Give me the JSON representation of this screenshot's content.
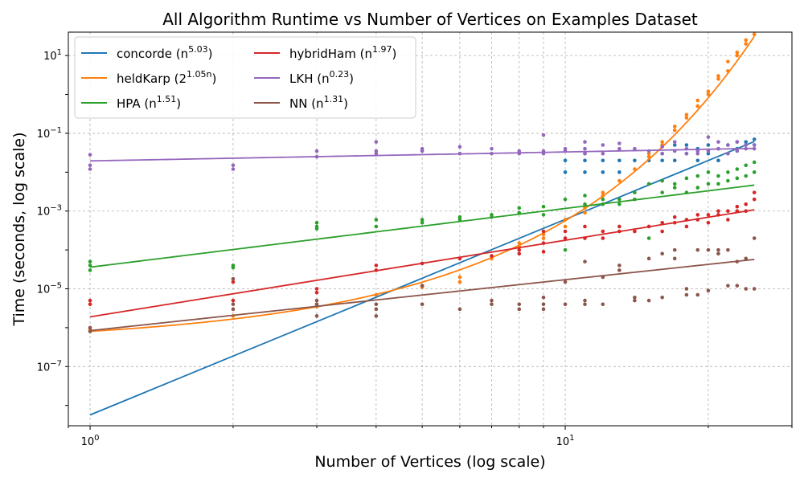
{
  "chart_data": {
    "type": "scatter",
    "title": "All Algorithm Runtime vs Number of Vertices on Examples Dataset",
    "xlabel": "Number of Vertices (log scale)",
    "ylabel": "Time (seconds, log scale)",
    "xscale": "log",
    "yscale": "log",
    "xlim": [
      0.9,
      30
    ],
    "ylim": [
      3e-09,
      40
    ],
    "grid": true,
    "legend_position": "top-left",
    "legend_columns": 2,
    "x_ticks": [
      {
        "value": 1,
        "base": "10",
        "exp": "0"
      },
      {
        "value": 10,
        "base": "10",
        "exp": "1"
      }
    ],
    "y_ticks": [
      {
        "value": 1e-07,
        "base": "10",
        "exp": "−7"
      },
      {
        "value": 1e-05,
        "base": "10",
        "exp": "−5"
      },
      {
        "value": 0.001,
        "base": "10",
        "exp": "−3"
      },
      {
        "value": 0.1,
        "base": "10",
        "exp": "−1"
      },
      {
        "value": 10,
        "base": "10",
        "exp": "1"
      }
    ],
    "series": [
      {
        "name": "concorde",
        "label_base": "n",
        "label_exp": "5.03",
        "color": "#1f77b4",
        "fit": {
          "kind": "power",
          "a": 5.7e-09,
          "b": 5.03
        },
        "points": [
          [
            10,
            0.01
          ],
          [
            10,
            0.02
          ],
          [
            11,
            0.01
          ],
          [
            11,
            0.02
          ],
          [
            11,
            0.03
          ],
          [
            12,
            0.01
          ],
          [
            12,
            0.02
          ],
          [
            13,
            0.01
          ],
          [
            13,
            0.02
          ],
          [
            14,
            0.02
          ],
          [
            15,
            0.02
          ],
          [
            16,
            0.02
          ],
          [
            16,
            0.03
          ],
          [
            17,
            0.02
          ],
          [
            17,
            0.05
          ],
          [
            18,
            0.03
          ],
          [
            18,
            0.05
          ],
          [
            19,
            0.02
          ],
          [
            19,
            0.04
          ],
          [
            20,
            0.03
          ],
          [
            20,
            0.05
          ],
          [
            21,
            0.02
          ],
          [
            21,
            0.04
          ],
          [
            22,
            0.03
          ],
          [
            22,
            0.05
          ],
          [
            23,
            0.04
          ],
          [
            23,
            0.06
          ],
          [
            24,
            0.05
          ],
          [
            24,
            0.06
          ],
          [
            25,
            0.05
          ],
          [
            25,
            0.07
          ]
        ]
      },
      {
        "name": "heldKarp",
        "label_base": "2",
        "label_exp": "1.05n",
        "color": "#ff7f0e",
        "fit": {
          "kind": "exp",
          "a": 3.9e-07,
          "b": 0.7278
        },
        "points": [
          [
            1,
            9e-07
          ],
          [
            2,
            2e-06
          ],
          [
            3,
            3.5e-06
          ],
          [
            4,
            7e-06
          ],
          [
            5,
            1.1e-05
          ],
          [
            6,
            2e-05
          ],
          [
            6,
            1.5e-05
          ],
          [
            7,
            7e-05
          ],
          [
            7,
            6e-05
          ],
          [
            8,
            0.00015
          ],
          [
            8,
            0.00012
          ],
          [
            9,
            0.00025
          ],
          [
            9,
            0.0002
          ],
          [
            10,
            0.0004
          ],
          [
            10,
            0.0006
          ],
          [
            11,
            0.0012
          ],
          [
            11,
            0.0009
          ],
          [
            12,
            0.0025
          ],
          [
            12,
            0.003
          ],
          [
            13,
            0.006
          ],
          [
            14,
            0.012
          ],
          [
            15,
            0.025
          ],
          [
            15,
            0.03
          ],
          [
            16,
            0.06
          ],
          [
            16,
            0.05
          ],
          [
            17,
            0.15
          ],
          [
            17,
            0.12
          ],
          [
            18,
            0.3
          ],
          [
            18,
            0.25
          ],
          [
            19,
            0.5
          ],
          [
            19,
            0.7
          ],
          [
            20,
            1.2
          ],
          [
            20,
            1.0
          ],
          [
            21,
            2.5
          ],
          [
            21,
            3.0
          ],
          [
            22,
            4.0
          ],
          [
            22,
            7.0
          ],
          [
            23,
            10
          ],
          [
            23,
            12
          ],
          [
            24,
            20
          ],
          [
            24,
            25
          ],
          [
            25,
            35
          ],
          [
            25,
            60
          ]
        ]
      },
      {
        "name": "HPA",
        "label_base": "n",
        "label_exp": "1.51",
        "color": "#2ca02c",
        "fit": {
          "kind": "power",
          "a": 3.6e-05,
          "b": 1.51
        },
        "points": [
          [
            1,
            4e-05
          ],
          [
            1,
            3e-05
          ],
          [
            1,
            5e-05
          ],
          [
            2,
            3.5e-05
          ],
          [
            2,
            4e-05
          ],
          [
            3,
            0.0004
          ],
          [
            3,
            0.0005
          ],
          [
            3,
            0.00035
          ],
          [
            4,
            0.0004
          ],
          [
            4,
            0.0006
          ],
          [
            5,
            0.0005
          ],
          [
            5,
            0.0006
          ],
          [
            6,
            0.0006
          ],
          [
            6,
            0.0007
          ],
          [
            7,
            0.0007
          ],
          [
            7,
            0.0008
          ],
          [
            8,
            0.0009
          ],
          [
            8,
            0.0012
          ],
          [
            9,
            0.0008
          ],
          [
            9,
            0.0013
          ],
          [
            10,
            0.0001
          ],
          [
            10,
            0.002
          ],
          [
            11,
            0.0015
          ],
          [
            11,
            0.0025
          ],
          [
            12,
            0.002
          ],
          [
            12,
            0.0015
          ],
          [
            13,
            0.002
          ],
          [
            13,
            0.0015
          ],
          [
            14,
            0.003
          ],
          [
            14,
            0.002
          ],
          [
            15,
            0.0002
          ],
          [
            15,
            0.005
          ],
          [
            16,
            0.003
          ],
          [
            16,
            0.006
          ],
          [
            17,
            0.004
          ],
          [
            17,
            0.005
          ],
          [
            18,
            0.003
          ],
          [
            18,
            0.007
          ],
          [
            19,
            0.004
          ],
          [
            19,
            0.008
          ],
          [
            20,
            0.005
          ],
          [
            20,
            0.01
          ],
          [
            21,
            0.005
          ],
          [
            21,
            0.008
          ],
          [
            22,
            0.006
          ],
          [
            22,
            0.01
          ],
          [
            23,
            0.007
          ],
          [
            23,
            0.012
          ],
          [
            24,
            0.008
          ],
          [
            24,
            0.015
          ],
          [
            25,
            0.01
          ],
          [
            25,
            0.018
          ]
        ]
      },
      {
        "name": "hybridHam",
        "label_base": "n",
        "label_exp": "1.97",
        "color": "#d62728",
        "fit": {
          "kind": "power",
          "a": 1.9e-06,
          "b": 1.97
        },
        "points": [
          [
            1,
            5e-06
          ],
          [
            1,
            4e-06
          ],
          [
            2,
            1.5e-05
          ],
          [
            2,
            5e-06
          ],
          [
            3,
            1e-05
          ],
          [
            3,
            8e-06
          ],
          [
            4,
            4e-05
          ],
          [
            4,
            3e-05
          ],
          [
            5,
            4.5e-05
          ],
          [
            5,
            1.2e-05
          ],
          [
            6,
            6e-05
          ],
          [
            7,
            7e-05
          ],
          [
            8,
            0.0001
          ],
          [
            8,
            8e-05
          ],
          [
            9,
            0.0003
          ],
          [
            9,
            0.00015
          ],
          [
            9,
            9e-05
          ],
          [
            10,
            0.0003
          ],
          [
            10,
            0.0002
          ],
          [
            11,
            0.0002
          ],
          [
            11,
            0.0004
          ],
          [
            12,
            0.0003
          ],
          [
            12,
            0.0002
          ],
          [
            13,
            0.0003
          ],
          [
            13,
            0.0004
          ],
          [
            14,
            0.0003
          ],
          [
            15,
            0.0004
          ],
          [
            16,
            0.0003
          ],
          [
            16,
            0.0005
          ],
          [
            17,
            0.0005
          ],
          [
            17,
            0.0007
          ],
          [
            18,
            0.0006
          ],
          [
            18,
            0.0004
          ],
          [
            19,
            0.0006
          ],
          [
            19,
            0.0008
          ],
          [
            20,
            0.0008
          ],
          [
            20,
            0.0005
          ],
          [
            21,
            0.0008
          ],
          [
            21,
            0.001
          ],
          [
            22,
            0.001
          ],
          [
            22,
            0.0006
          ],
          [
            23,
            0.001
          ],
          [
            23,
            0.0013
          ],
          [
            24,
            0.0015
          ],
          [
            24,
            0.001
          ],
          [
            25,
            0.002
          ],
          [
            25,
            0.003
          ]
        ]
      },
      {
        "name": "LKH",
        "label_base": "n",
        "label_exp": "0.23",
        "color": "#9467bd",
        "fit": {
          "kind": "power",
          "a": 0.0195,
          "b": 0.23
        },
        "points": [
          [
            1,
            0.028
          ],
          [
            1,
            0.015
          ],
          [
            1,
            0.012
          ],
          [
            2,
            0.015
          ],
          [
            2,
            0.012
          ],
          [
            3,
            0.035
          ],
          [
            3,
            0.025
          ],
          [
            4,
            0.06
          ],
          [
            4,
            0.035
          ],
          [
            4,
            0.03
          ],
          [
            5,
            0.035
          ],
          [
            5,
            0.04
          ],
          [
            6,
            0.045
          ],
          [
            6,
            0.03
          ],
          [
            7,
            0.04
          ],
          [
            7,
            0.03
          ],
          [
            8,
            0.035
          ],
          [
            8,
            0.03
          ],
          [
            9,
            0.09
          ],
          [
            9,
            0.035
          ],
          [
            9,
            0.03
          ],
          [
            10,
            0.035
          ],
          [
            10,
            0.04
          ],
          [
            11,
            0.06
          ],
          [
            11,
            0.04
          ],
          [
            11,
            0.03
          ],
          [
            12,
            0.05
          ],
          [
            12,
            0.03
          ],
          [
            13,
            0.055
          ],
          [
            13,
            0.04
          ],
          [
            14,
            0.04
          ],
          [
            15,
            0.035
          ],
          [
            16,
            0.045
          ],
          [
            16,
            0.03
          ],
          [
            17,
            0.06
          ],
          [
            17,
            0.035
          ],
          [
            18,
            0.04
          ],
          [
            18,
            0.03
          ],
          [
            19,
            0.035
          ],
          [
            19,
            0.03
          ],
          [
            20,
            0.08
          ],
          [
            20,
            0.035
          ],
          [
            21,
            0.06
          ],
          [
            21,
            0.04
          ],
          [
            22,
            0.05
          ],
          [
            22,
            0.03
          ],
          [
            23,
            0.06
          ],
          [
            23,
            0.035
          ],
          [
            24,
            0.05
          ],
          [
            24,
            0.04
          ],
          [
            25,
            0.04
          ],
          [
            25,
            0.05
          ]
        ]
      },
      {
        "name": "NN",
        "label_base": "n",
        "label_exp": "1.31",
        "color": "#8c564b",
        "fit": {
          "kind": "power",
          "a": 8.4e-07,
          "b": 1.31
        },
        "points": [
          [
            1,
            1e-06
          ],
          [
            1,
            8e-07
          ],
          [
            2,
            1.8e-05
          ],
          [
            2,
            3e-06
          ],
          [
            2,
            4e-06
          ],
          [
            3,
            2e-06
          ],
          [
            3,
            4e-06
          ],
          [
            3,
            5e-06
          ],
          [
            4,
            3e-06
          ],
          [
            4,
            2e-06
          ],
          [
            4,
            4e-06
          ],
          [
            5,
            4e-06
          ],
          [
            5,
            1.2e-05
          ],
          [
            6,
            3e-06
          ],
          [
            7,
            4e-06
          ],
          [
            7,
            5e-06
          ],
          [
            8,
            4e-06
          ],
          [
            8,
            3e-06
          ],
          [
            9,
            4e-06
          ],
          [
            9,
            6e-06
          ],
          [
            9,
            3e-06
          ],
          [
            10,
            4e-06
          ],
          [
            10,
            1.5e-05
          ],
          [
            11,
            4e-06
          ],
          [
            11,
            5e-05
          ],
          [
            11,
            5e-06
          ],
          [
            12,
            4e-06
          ],
          [
            12,
            2e-05
          ],
          [
            13,
            4e-05
          ],
          [
            13,
            3e-05
          ],
          [
            14,
            6e-06
          ],
          [
            14,
            5e-06
          ],
          [
            15,
            6e-05
          ],
          [
            15,
            5e-06
          ],
          [
            16,
            6e-06
          ],
          [
            16,
            8e-05
          ],
          [
            17,
            6e-05
          ],
          [
            17,
            0.0001
          ],
          [
            18,
            1e-05
          ],
          [
            18,
            7e-06
          ],
          [
            19,
            0.0001
          ],
          [
            19,
            7e-06
          ],
          [
            20,
            0.0001
          ],
          [
            20,
            9e-06
          ],
          [
            21,
            8e-05
          ],
          [
            21,
            0.0001
          ],
          [
            22,
            1.2e-05
          ],
          [
            22,
            0.0001
          ],
          [
            23,
            1.2e-05
          ],
          [
            23,
            5e-05
          ],
          [
            24,
            1e-05
          ],
          [
            24,
            6e-05
          ],
          [
            25,
            1e-05
          ],
          [
            25,
            0.0002
          ]
        ]
      }
    ]
  }
}
